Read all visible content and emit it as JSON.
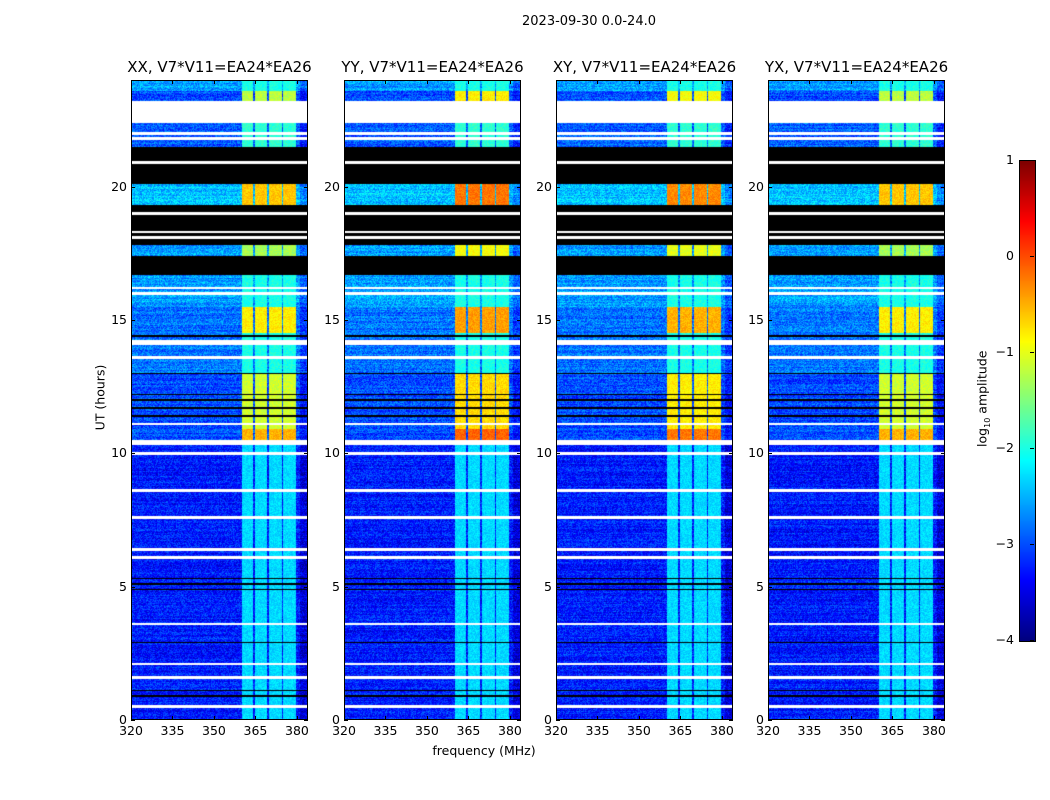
{
  "suptitle": "2023-09-30 0.0-24.0",
  "chart_data": {
    "type": "heatmap",
    "panels": [
      {
        "title": "XX, V7*V11=EA24*EA26",
        "rfi_boost": 0.0
      },
      {
        "title": "YY, V7*V11=EA24*EA26",
        "rfi_boost": 0.4
      },
      {
        "title": "XY, V7*V11=EA24*EA26",
        "rfi_boost": 0.3
      },
      {
        "title": "YX, V7*V11=EA24*EA26",
        "rfi_boost": 0.0
      }
    ],
    "xlabel": "frequency (MHz)",
    "ylabel": "UT (hours)",
    "xlim": [
      320,
      384
    ],
    "ylim": [
      0,
      24
    ],
    "xticks": [
      "320",
      "335",
      "350",
      "365",
      "380"
    ],
    "xtick_values": [
      320,
      335,
      350,
      365,
      380
    ],
    "yticks": [
      "0",
      "5",
      "10",
      "15",
      "20"
    ],
    "ytick_values": [
      0,
      5,
      10,
      15,
      20
    ],
    "colormap": "jet",
    "colorbar": {
      "label": "amplitude",
      "label_prefix": "log",
      "label_sub": "10",
      "range": [
        -4,
        1
      ],
      "ticks": [
        "1",
        "0",
        "−1",
        "−2",
        "−3",
        "−4"
      ],
      "tick_values": [
        1,
        0,
        -1,
        -2,
        -3,
        -4
      ]
    },
    "rfi_channels_mhz": [
      [
        360,
        364
      ],
      [
        365,
        369
      ],
      [
        370,
        374.5
      ],
      [
        375,
        379.5
      ]
    ],
    "segments_hours": [
      {
        "from": 23.6,
        "to": 24.0,
        "kind": "data",
        "bg": -2.6,
        "rfi": -2.0
      },
      {
        "from": 23.2,
        "to": 23.6,
        "kind": "data",
        "bg": -3.0,
        "rfi": -1.2
      },
      {
        "from": 22.4,
        "to": 23.2,
        "kind": "flagged"
      },
      {
        "from": 21.5,
        "to": 22.4,
        "kind": "data",
        "bg": -2.9,
        "rfi": -1.9
      },
      {
        "from": 20.1,
        "to": 21.5,
        "kind": "zero"
      },
      {
        "from": 19.3,
        "to": 20.1,
        "kind": "data",
        "bg": -2.4,
        "rfi": -0.6
      },
      {
        "from": 17.8,
        "to": 19.3,
        "kind": "zero"
      },
      {
        "from": 17.4,
        "to": 17.8,
        "kind": "data",
        "bg": -2.6,
        "rfi": -1.3
      },
      {
        "from": 16.7,
        "to": 17.4,
        "kind": "zero"
      },
      {
        "from": 15.5,
        "to": 16.7,
        "kind": "data",
        "bg": -2.6,
        "rfi": -2.0
      },
      {
        "from": 14.5,
        "to": 15.5,
        "kind": "data",
        "bg": -2.8,
        "rfi": -0.8
      },
      {
        "from": 13.0,
        "to": 14.5,
        "kind": "data",
        "bg": -2.8,
        "rfi": -2.0
      },
      {
        "from": 10.9,
        "to": 13.0,
        "kind": "data",
        "bg": -3.0,
        "rfi": -1.1
      },
      {
        "from": 10.5,
        "to": 10.9,
        "kind": "data",
        "bg": -3.0,
        "rfi": -0.5
      },
      {
        "from": 10.3,
        "to": 10.5,
        "kind": "flagged"
      },
      {
        "from": 0.0,
        "to": 10.3,
        "kind": "data",
        "bg": -3.25,
        "rfi": -2.3
      }
    ],
    "flagged_lines_hours": [
      23.1,
      21.8,
      22.0,
      20.9,
      19.0,
      18.3,
      18.1,
      16.2,
      16.0,
      14.2,
      14.1,
      13.6,
      11.1,
      10.0,
      8.6,
      7.6,
      6.4,
      6.1,
      3.6,
      2.1,
      1.6,
      0.5
    ],
    "zero_lines_hours": [
      5.3,
      5.1,
      4.9,
      1.1,
      0.9,
      12.2,
      12.0,
      11.7,
      11.4,
      13.0,
      14.4,
      2.9
    ]
  }
}
